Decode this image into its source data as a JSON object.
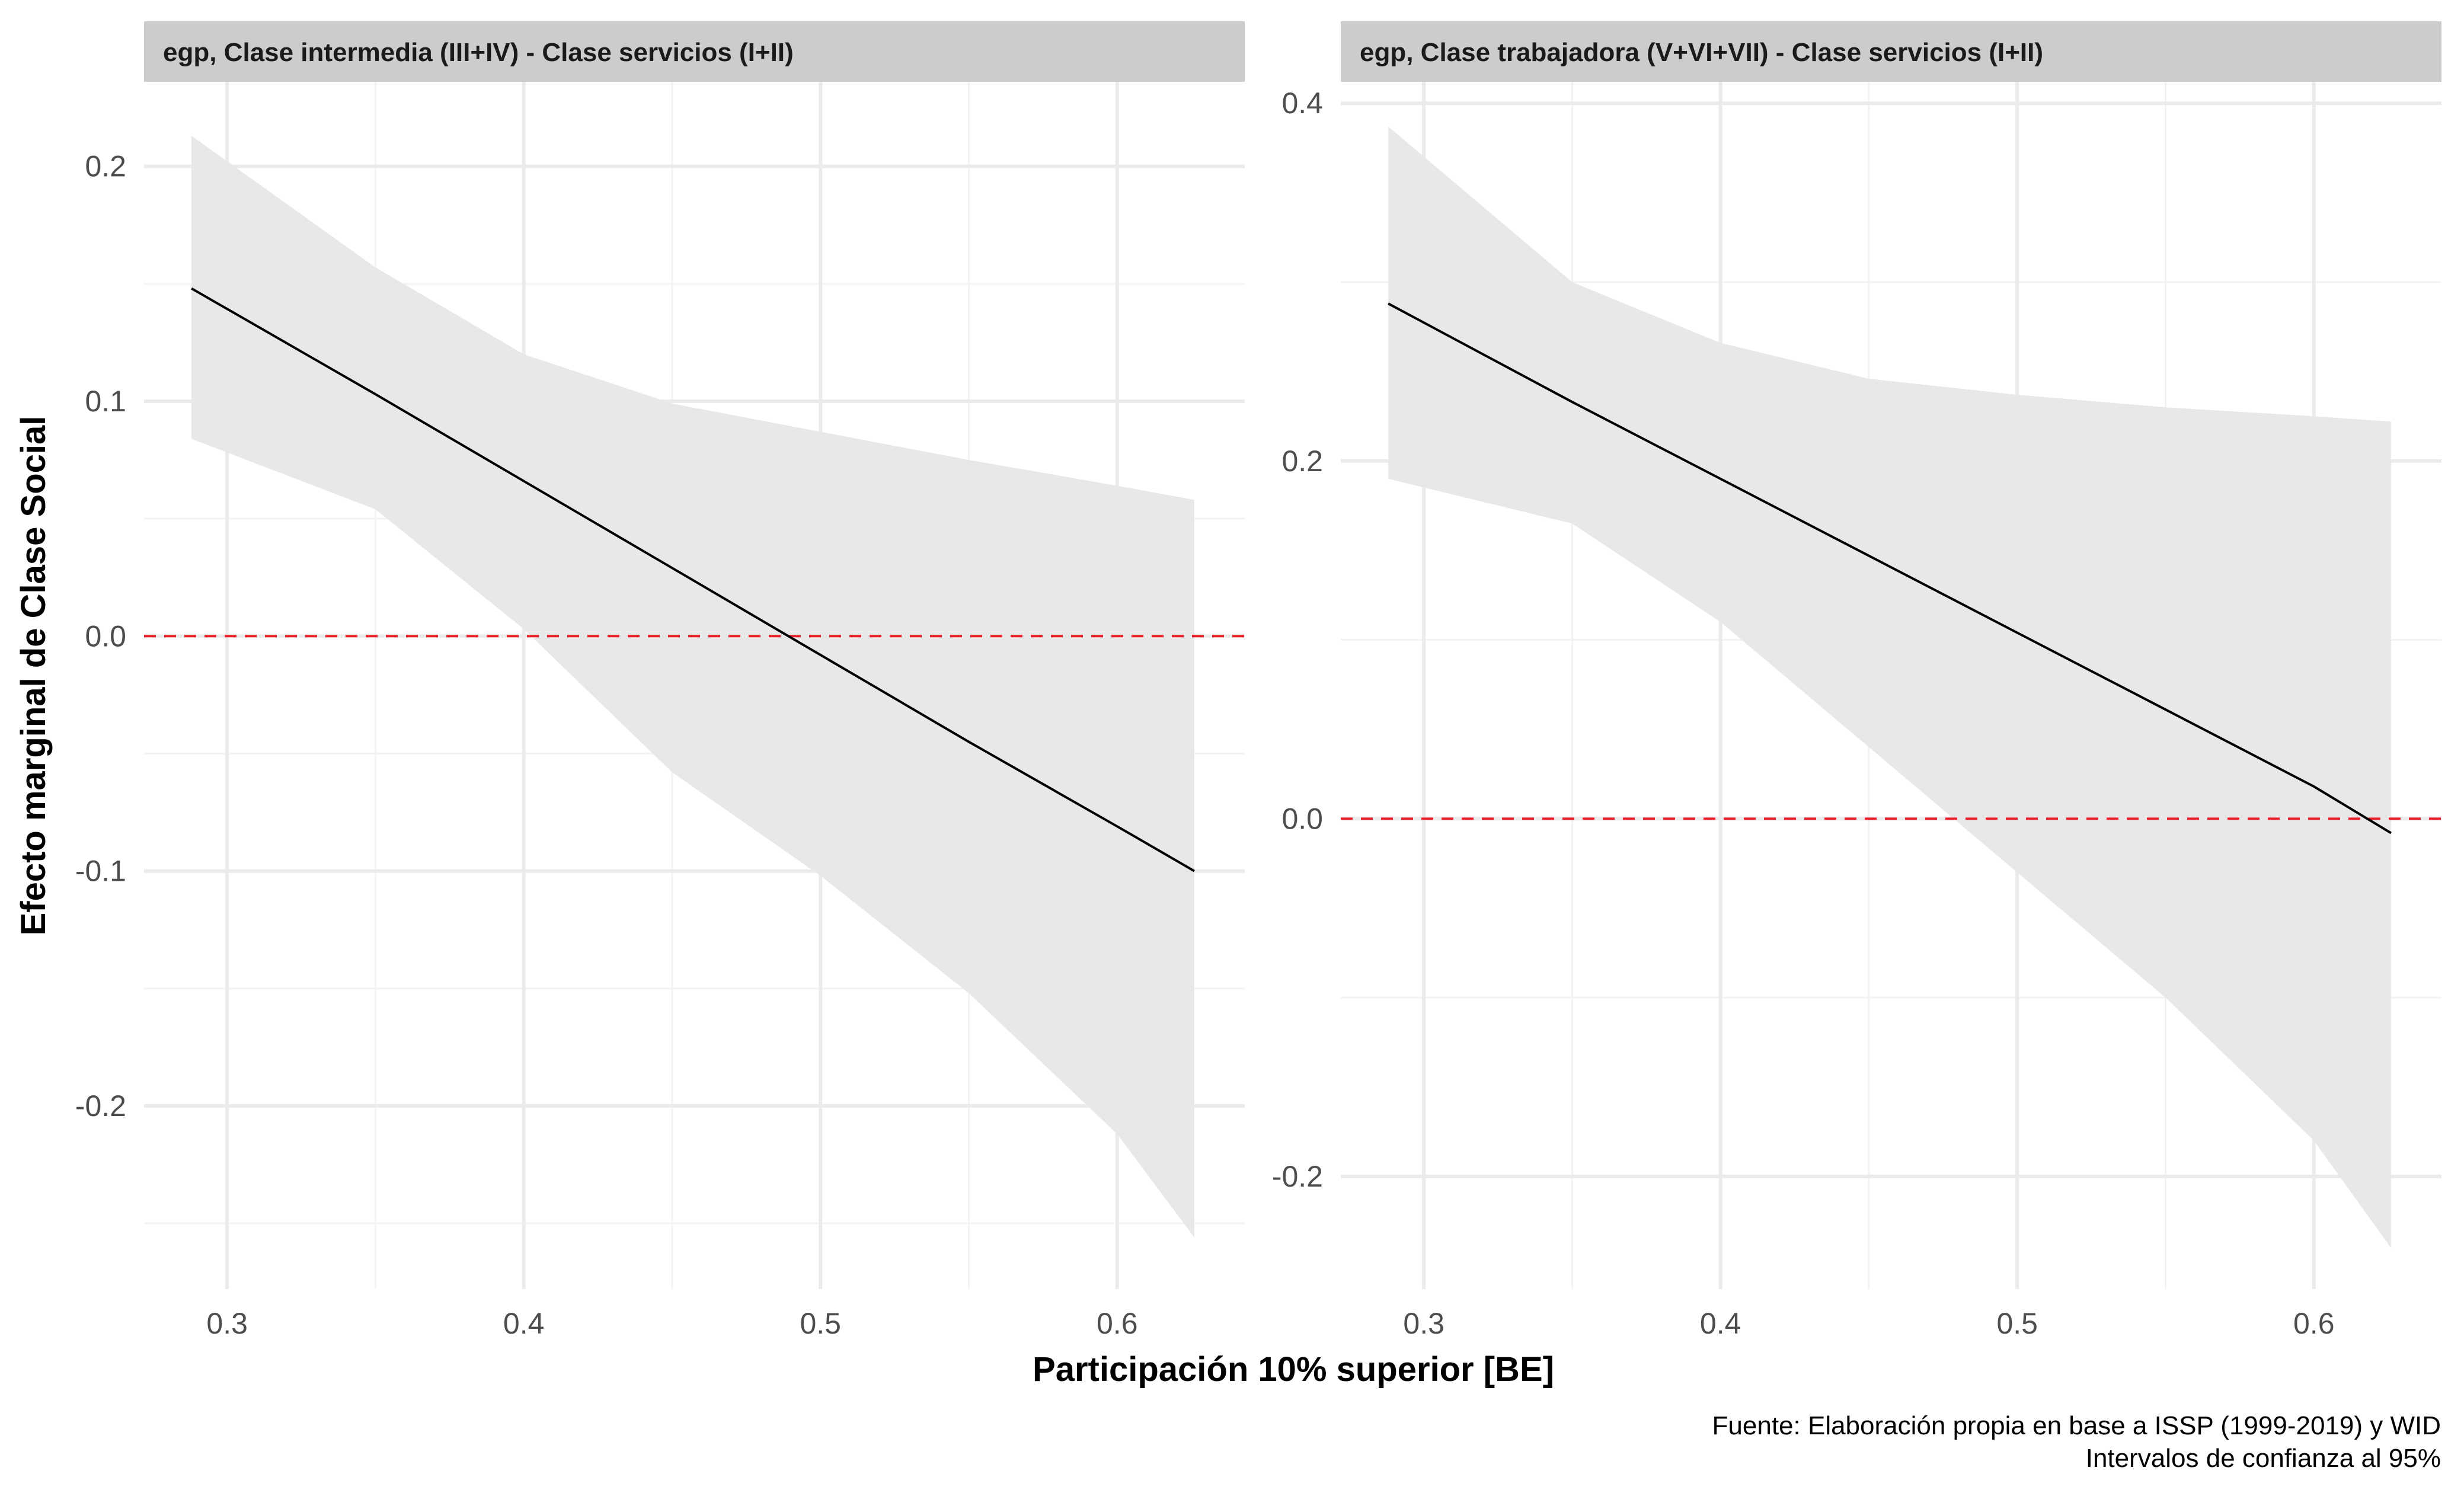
{
  "chart_data": {
    "type": "line",
    "xlabel": "Participación 10% superior [BE]",
    "ylabel": "Efecto marginal de Clase Social",
    "caption": [
      "Fuente: Elaboración propia en base a ISSP (1999-2019) y WID",
      "Intervalos de confianza al 95%"
    ],
    "colors": {
      "line": "#000000",
      "ribbon": "#e8e8e8",
      "reference_line": "#e8202a",
      "strip": "#cccccc",
      "grid": "#ebebeb"
    },
    "grid": true,
    "panels": [
      {
        "title": "egp, Clase intermedia (III+IV) - Clase servicios (I+II)",
        "xlim": [
          0.272,
          0.643
        ],
        "ylim": [
          -0.278,
          0.236
        ],
        "x_ticks": [
          0.3,
          0.4,
          0.5,
          0.6
        ],
        "x_tick_labels": [
          "0.3",
          "0.4",
          "0.5",
          "0.6"
        ],
        "y_ticks": [
          -0.2,
          -0.1,
          0.0,
          0.1,
          0.2
        ],
        "y_tick_labels": [
          "-0.2",
          "-0.1",
          "0.0",
          "0.1",
          "0.2"
        ],
        "reference_y": 0,
        "x": [
          0.288,
          0.35,
          0.4,
          0.45,
          0.5,
          0.55,
          0.6,
          0.626
        ],
        "y": [
          0.148,
          0.103,
          0.066,
          0.029,
          -0.008,
          -0.045,
          -0.081,
          -0.1
        ],
        "lower": [
          0.084,
          0.054,
          0.003,
          -0.058,
          -0.102,
          -0.152,
          -0.212,
          -0.256
        ],
        "upper": [
          0.213,
          0.157,
          0.12,
          0.099,
          0.087,
          0.075,
          0.064,
          0.058
        ]
      },
      {
        "title": "egp, Clase trabajadora (V+VI+VII) - Clase servicios (I+II)",
        "xlim": [
          0.272,
          0.643
        ],
        "ylim": [
          -0.263,
          0.412
        ],
        "x_ticks": [
          0.3,
          0.4,
          0.5,
          0.6
        ],
        "x_tick_labels": [
          "0.3",
          "0.4",
          "0.5",
          "0.6"
        ],
        "y_ticks": [
          -0.2,
          0.0,
          0.2,
          0.4
        ],
        "y_tick_labels": [
          "-0.2",
          "0.0",
          "0.2",
          "0.4"
        ],
        "reference_y": 0,
        "x": [
          0.288,
          0.35,
          0.4,
          0.45,
          0.5,
          0.55,
          0.6,
          0.626
        ],
        "y": [
          0.288,
          0.233,
          0.19,
          0.147,
          0.104,
          0.061,
          0.018,
          -0.008
        ],
        "lower": [
          0.19,
          0.165,
          0.11,
          0.04,
          -0.03,
          -0.1,
          -0.18,
          -0.24
        ],
        "upper": [
          0.387,
          0.3,
          0.266,
          0.246,
          0.237,
          0.23,
          0.225,
          0.222
        ]
      }
    ]
  }
}
